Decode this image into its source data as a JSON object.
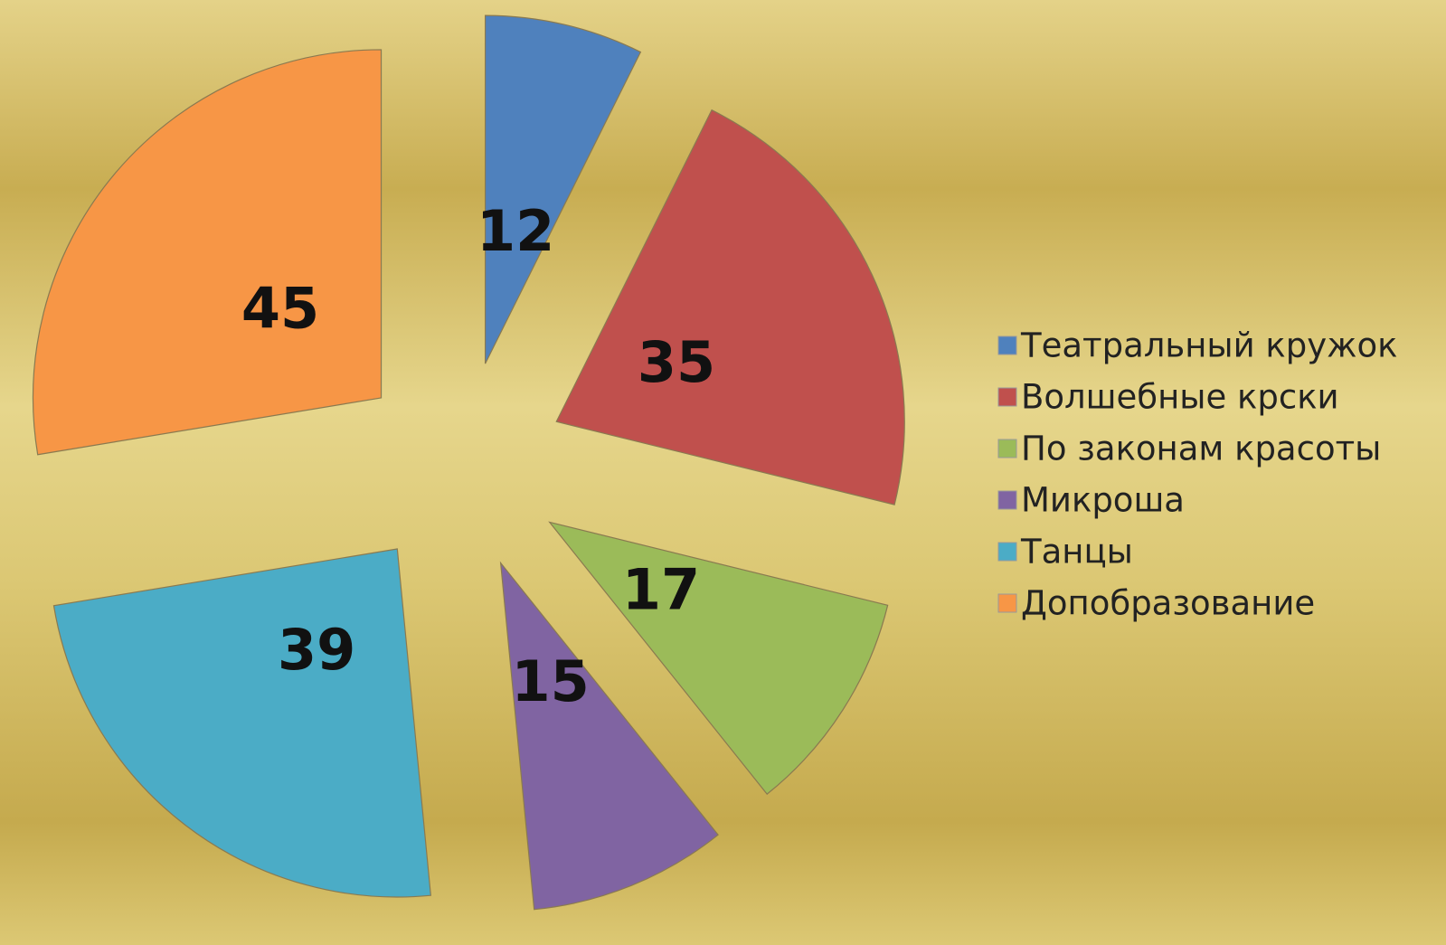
{
  "chart_data": {
    "type": "pie",
    "categories": [
      "Театральный  кружок",
      "Волшебные крски",
      "По законам красоты",
      "Микроша",
      "Танцы",
      "Допобразование"
    ],
    "values": [
      12,
      35,
      17,
      15,
      39,
      45
    ],
    "colors": [
      "#4f81bd",
      "#c0504d",
      "#9bbb59",
      "#8064a2",
      "#4bacc6",
      "#f79646"
    ],
    "legend": "right"
  }
}
